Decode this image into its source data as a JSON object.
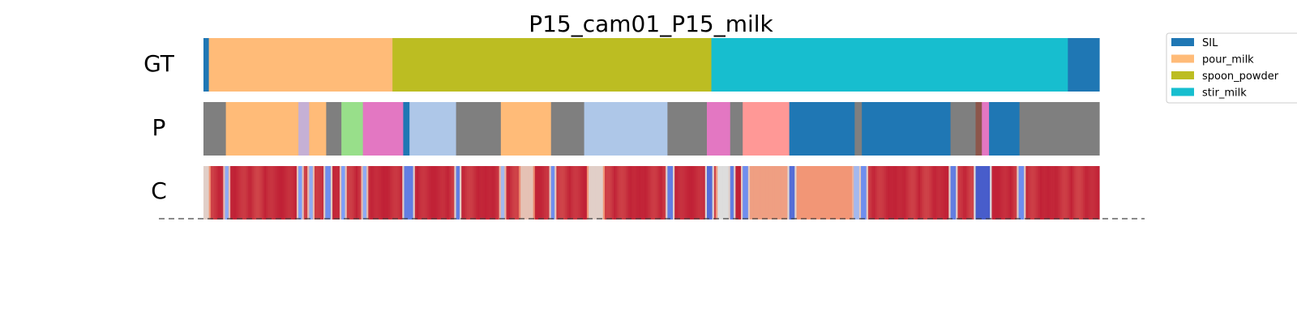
{
  "chart_data": {
    "type": "segmentation_timeline",
    "title": "P15_cam01_P15_milk",
    "x_range": [
      0,
      1000
    ],
    "colors": {
      "SIL": "#1f77b4",
      "pour_milk": "#ffbb78",
      "spoon_powder": "#bcbd22",
      "stir_milk": "#17becf",
      "unknown": "#7f7f7f",
      "lavender": "#c5b0d5",
      "green": "#98df8a",
      "pink": "#e377c2",
      "lightblue": "#aec7e8",
      "salmon": "#ff9896",
      "brown": "#8c564b"
    },
    "legend": {
      "placement": "outside-right",
      "entries": [
        {
          "label": "SIL",
          "key": "SIL"
        },
        {
          "label": "pour_milk",
          "key": "pour_milk"
        },
        {
          "label": "spoon_powder",
          "key": "spoon_powder"
        },
        {
          "label": "stir_milk",
          "key": "stir_milk"
        }
      ]
    },
    "rows": [
      {
        "label": "GT",
        "segments": [
          {
            "start": 0,
            "end": 6,
            "key": "SIL"
          },
          {
            "start": 6,
            "end": 211,
            "key": "pour_milk"
          },
          {
            "start": 211,
            "end": 567,
            "key": "spoon_powder"
          },
          {
            "start": 567,
            "end": 965,
            "key": "stir_milk"
          },
          {
            "start": 965,
            "end": 1000,
            "key": "SIL"
          }
        ]
      },
      {
        "label": "P",
        "segments": [
          {
            "start": 0,
            "end": 25,
            "key": "unknown"
          },
          {
            "start": 25,
            "end": 106,
            "key": "pour_milk"
          },
          {
            "start": 106,
            "end": 118,
            "key": "lavender"
          },
          {
            "start": 118,
            "end": 137,
            "key": "pour_milk"
          },
          {
            "start": 137,
            "end": 154,
            "key": "unknown"
          },
          {
            "start": 154,
            "end": 178,
            "key": "green"
          },
          {
            "start": 178,
            "end": 223,
            "key": "pink"
          },
          {
            "start": 223,
            "end": 230,
            "key": "SIL"
          },
          {
            "start": 230,
            "end": 282,
            "key": "lightblue"
          },
          {
            "start": 282,
            "end": 332,
            "key": "unknown"
          },
          {
            "start": 332,
            "end": 388,
            "key": "pour_milk"
          },
          {
            "start": 388,
            "end": 425,
            "key": "unknown"
          },
          {
            "start": 425,
            "end": 518,
            "key": "lightblue"
          },
          {
            "start": 518,
            "end": 562,
            "key": "unknown"
          },
          {
            "start": 562,
            "end": 588,
            "key": "pink"
          },
          {
            "start": 588,
            "end": 602,
            "key": "unknown"
          },
          {
            "start": 602,
            "end": 654,
            "key": "salmon"
          },
          {
            "start": 654,
            "end": 727,
            "key": "SIL"
          },
          {
            "start": 727,
            "end": 735,
            "key": "unknown"
          },
          {
            "start": 735,
            "end": 834,
            "key": "SIL"
          },
          {
            "start": 834,
            "end": 862,
            "key": "unknown"
          },
          {
            "start": 862,
            "end": 869,
            "key": "brown"
          },
          {
            "start": 869,
            "end": 877,
            "key": "pink"
          },
          {
            "start": 877,
            "end": 911,
            "key": "SIL"
          },
          {
            "start": 911,
            "end": 1000,
            "key": "unknown"
          }
        ]
      },
      {
        "label": "C",
        "type": "confidence_heatmap",
        "base_confidence": 0.95,
        "dips": [
          {
            "x": 1,
            "width": 3,
            "confidence": 0.55
          },
          {
            "x": 24,
            "width": 2,
            "confidence": 0.3
          },
          {
            "x": 106,
            "width": 2,
            "confidence": 0.25
          },
          {
            "x": 118,
            "width": 2,
            "confidence": 0.3
          },
          {
            "x": 137,
            "width": 2,
            "confidence": 0.2
          },
          {
            "x": 154,
            "width": 2,
            "confidence": 0.25
          },
          {
            "x": 178,
            "width": 2,
            "confidence": 0.3
          },
          {
            "x": 224,
            "width": 8,
            "confidence": 0.15
          },
          {
            "x": 282,
            "width": 2,
            "confidence": 0.15
          },
          {
            "x": 332,
            "width": 2,
            "confidence": 0.35
          },
          {
            "x": 354,
            "width": 12,
            "confidence": 0.6
          },
          {
            "x": 388,
            "width": 2,
            "confidence": 0.2
          },
          {
            "x": 430,
            "width": 14,
            "confidence": 0.55
          },
          {
            "x": 518,
            "width": 3,
            "confidence": 0.15
          },
          {
            "x": 562,
            "width": 3,
            "confidence": 0.1
          },
          {
            "x": 575,
            "width": 8,
            "confidence": 0.5
          },
          {
            "x": 588,
            "width": 2,
            "confidence": 0.15
          },
          {
            "x": 602,
            "width": 3,
            "confidence": 0.2
          },
          {
            "x": 605,
            "width": 50,
            "confidence": 0.72
          },
          {
            "x": 654,
            "width": 3,
            "confidence": 0.1
          },
          {
            "x": 657,
            "width": 70,
            "confidence": 0.75
          },
          {
            "x": 727,
            "width": 3,
            "confidence": 0.35
          },
          {
            "x": 735,
            "width": 3,
            "confidence": 0.2
          },
          {
            "x": 834,
            "width": 3,
            "confidence": 0.15
          },
          {
            "x": 862,
            "width": 14,
            "confidence": 0.05
          },
          {
            "x": 911,
            "width": 3,
            "confidence": 0.2
          }
        ]
      }
    ],
    "baseline": "dashed"
  }
}
